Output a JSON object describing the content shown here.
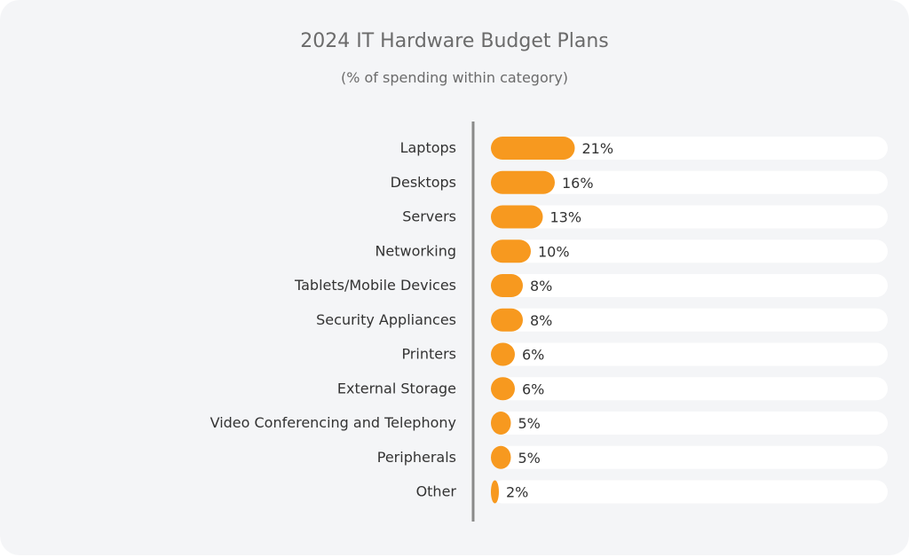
{
  "chart_data": {
    "type": "bar",
    "orientation": "horizontal",
    "title": "2024 IT Hardware Budget Plans",
    "subtitle": "(% of spending within category)",
    "categories": [
      "Laptops",
      "Desktops",
      "Servers",
      "Networking",
      "Tablets/Mobile Devices",
      "Security Appliances",
      "Printers",
      "External Storage",
      "Video Conferencing and Telephony",
      "Peripherals",
      "Other"
    ],
    "values": [
      21,
      16,
      13,
      10,
      8,
      8,
      6,
      6,
      5,
      5,
      2
    ],
    "value_labels": [
      "21%",
      "16%",
      "13%",
      "10%",
      "8%",
      "8%",
      "6%",
      "6%",
      "5%",
      "5%",
      "2%"
    ],
    "xlim": [
      0,
      100
    ],
    "grid": false,
    "legend": "none",
    "colors": {
      "bar": "#f7991f",
      "track": "#ffffff",
      "axis": "#8a8a8a",
      "background": "#f4f5f7"
    }
  }
}
